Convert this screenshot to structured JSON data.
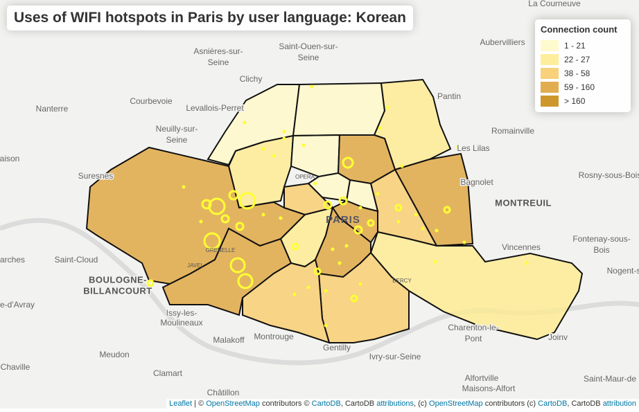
{
  "title": "Uses of WIFI hotspots in Paris by user language: Korean",
  "legend": {
    "title": "Connection count",
    "items": [
      {
        "label": "1 - 21",
        "color": "#fff9c8"
      },
      {
        "label": "22 - 27",
        "color": "#feeb90"
      },
      {
        "label": "38 - 58",
        "color": "#f7cc6c"
      },
      {
        "label": "59 - 160",
        "color": "#dfa43c"
      },
      {
        "label": "> 160",
        "color": "#c98c14"
      }
    ]
  },
  "places": [
    "La Courneuve",
    "Asnières-sur-",
    "Seine",
    "Saint-Ouen-sur-",
    "Seine",
    "Aubervilliers",
    "Clichy",
    "Pantin",
    "Courbevoie",
    "Levallois-Perret",
    "Nanterre",
    "Neuilly-sur-",
    "Seine",
    "Romainville",
    "Les Lilas",
    "Suresnes",
    "Bagnolet",
    "Rosny-sous-Bois",
    "MONTREUIL",
    "PARIS",
    "OPERA",
    "Fontenay-sous-",
    "Bois",
    "Vincennes",
    "Saint-Cloud",
    "GRENELLE",
    "JAVEL",
    "BOULOGNE-",
    "BILLANCOURT",
    "BERCY",
    "Nogent-s",
    "Issy-les-",
    "Moulineaux",
    "Charenton-le-",
    "Pont",
    "Malakoff",
    "Montrouge",
    "Joinv",
    "Gentilly",
    "Ivry-sur-Seine",
    "Meudon",
    "Clamart",
    "Alfortville",
    "Saint-Maur-de",
    "Maisons-Alfort",
    "Châtillon",
    "Chaville",
    "e-d'Avray",
    "aison",
    "arches"
  ],
  "attribution": [
    "Leaflet",
    " | © ",
    "OpenStreetMap",
    " contributors © ",
    "CartoDB",
    ", CartoDB ",
    "attributions",
    ", (c) ",
    "OpenStreetMap",
    " contributors (c) ",
    "CartoDB",
    ", CartoDB ",
    "attribution"
  ]
}
